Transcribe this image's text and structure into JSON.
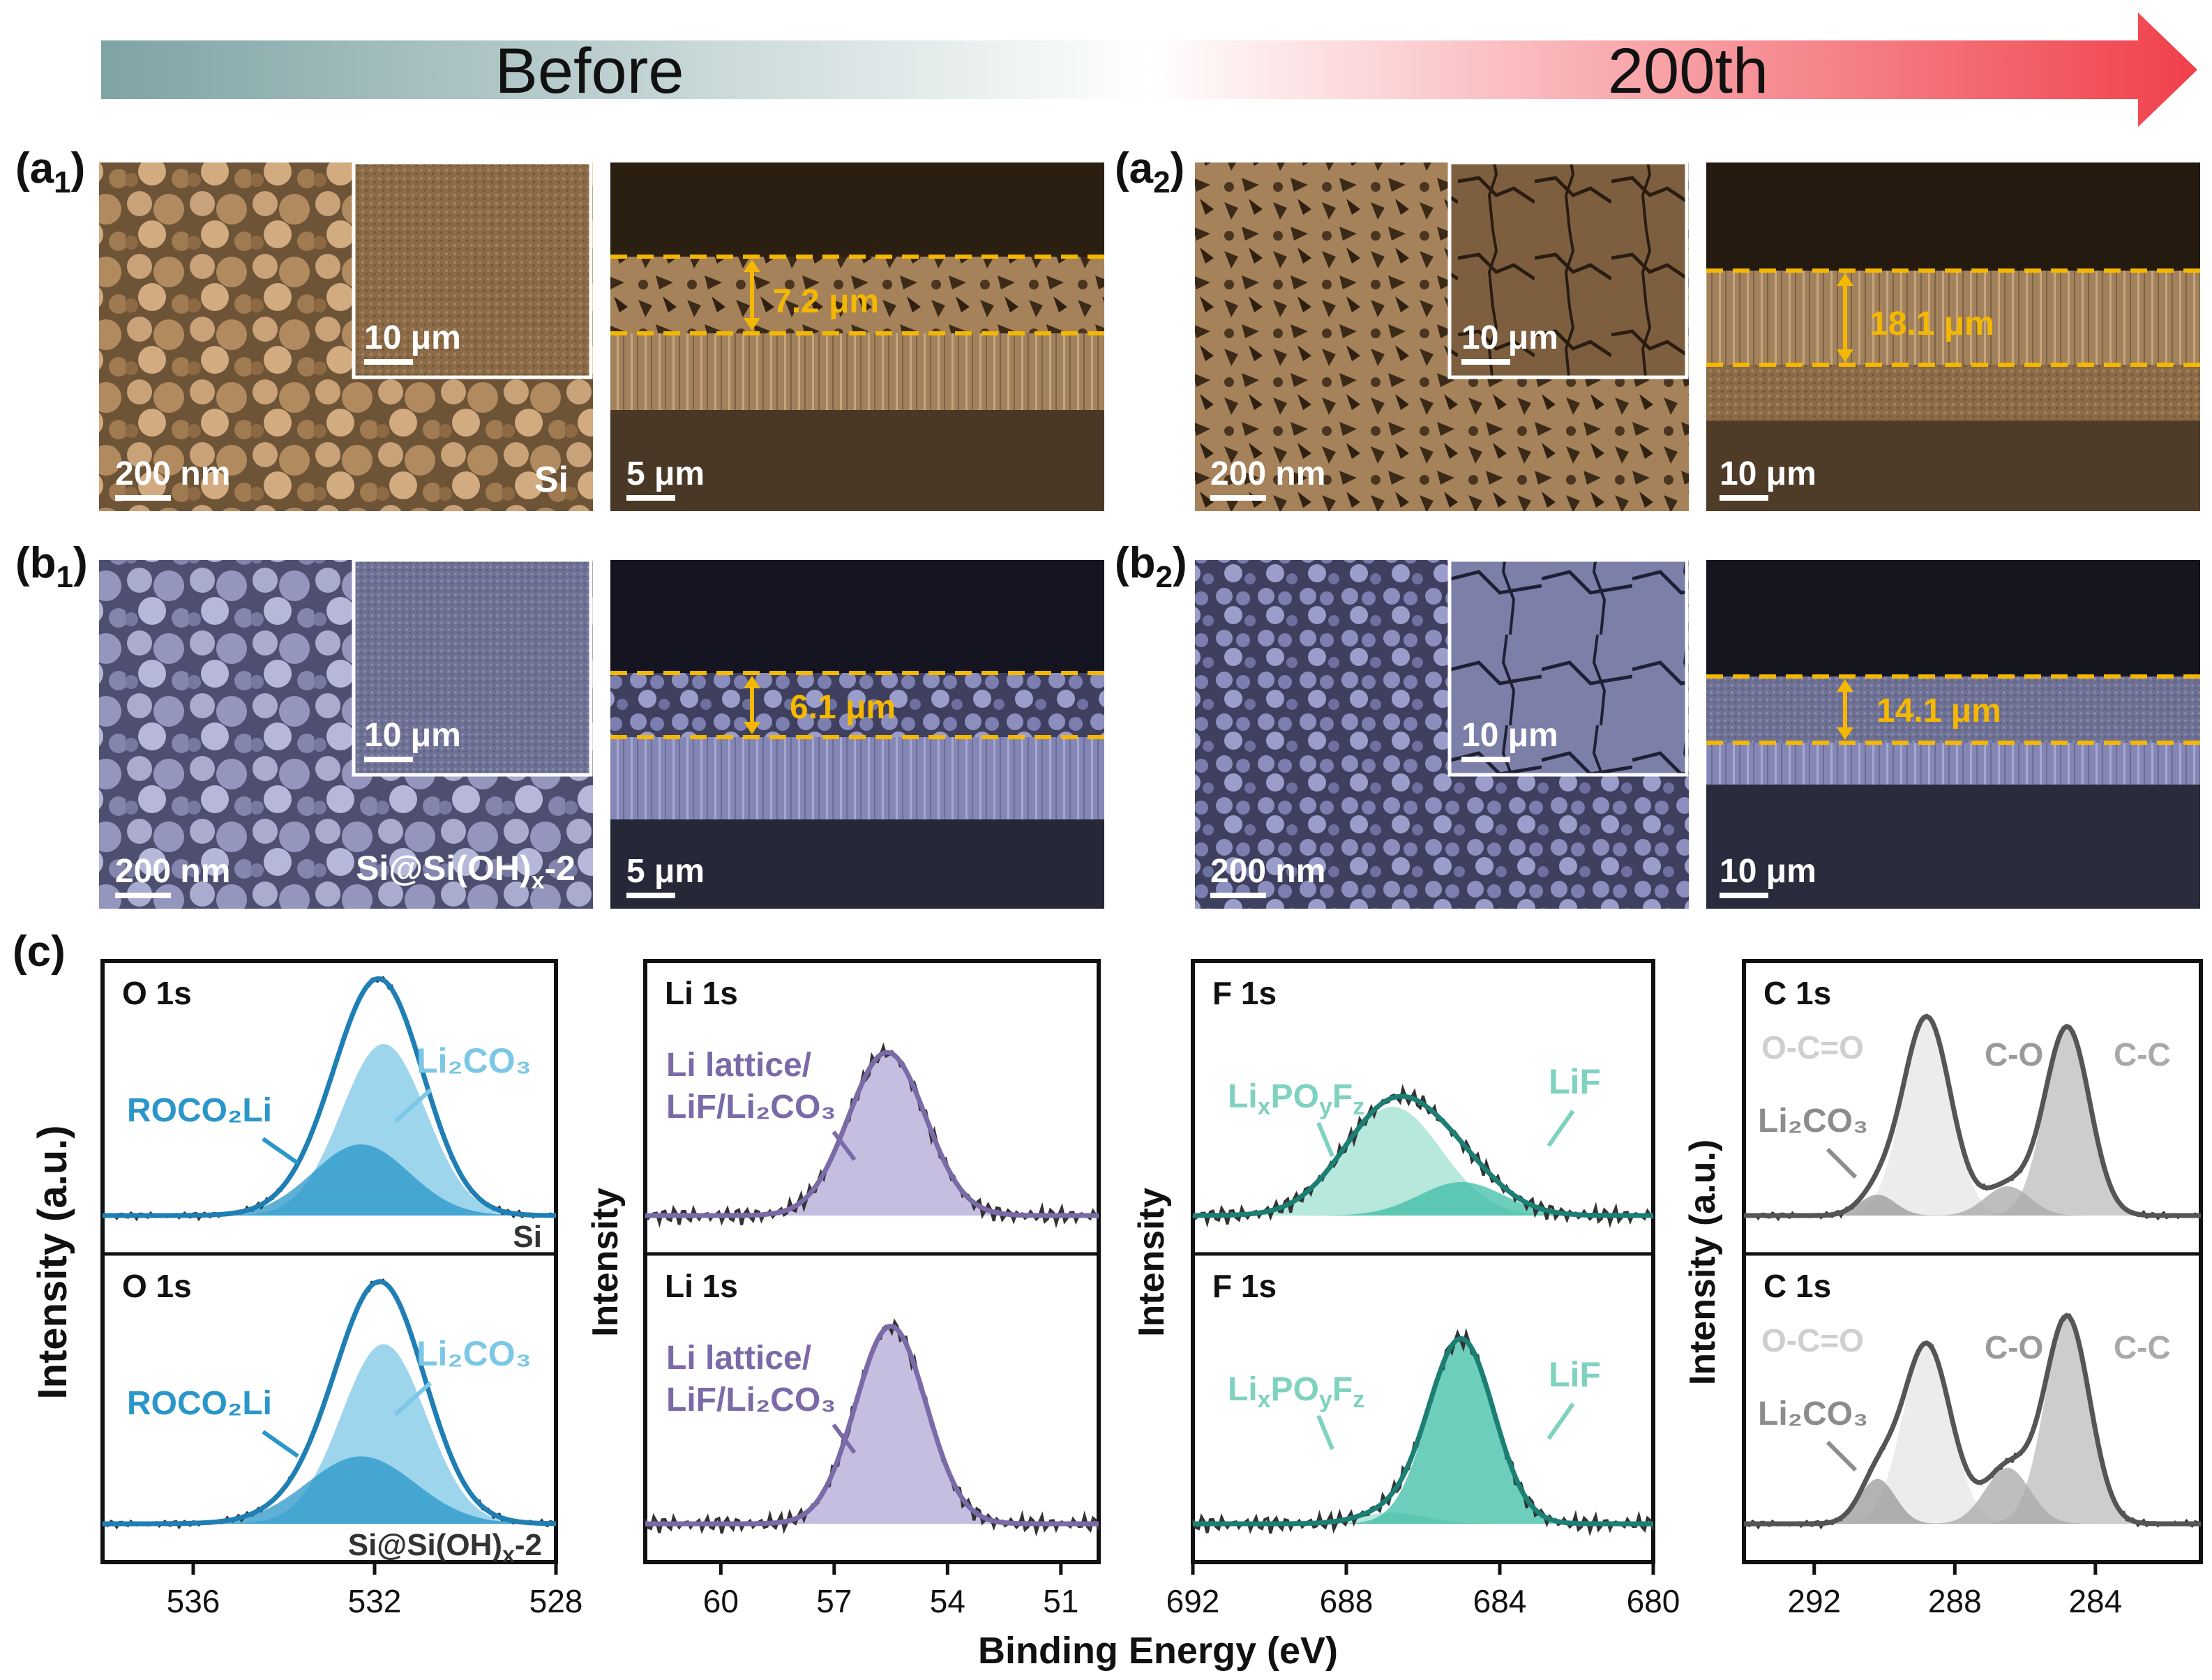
{
  "banner": {
    "before_label": "Before",
    "after_label": "200th",
    "gradient_start": "#7fa3a4",
    "gradient_end": "#f0404a"
  },
  "sem_rows": [
    {
      "row_id": "a",
      "sample_label": "Si",
      "tint": "#b48c63",
      "panels": [
        {
          "label_main": "(a",
          "label_sub": "1",
          "label_close": ")",
          "surface_scale": "200 nm",
          "inset_scale": "10 μm",
          "cross_scale": "5 μm",
          "thickness": "7.2 μm",
          "thickness_um": 7.2
        },
        {
          "label_main": "(a",
          "label_sub": "2",
          "label_close": ")",
          "surface_scale": "200 nm",
          "inset_scale": "10 μm",
          "cross_scale": "10 μm",
          "thickness": "18.1 μm",
          "thickness_um": 18.1
        }
      ]
    },
    {
      "row_id": "b",
      "sample_label": "Si@Si(OH)x-2",
      "tint": "#8c8fc4",
      "panels": [
        {
          "label_main": "(b",
          "label_sub": "1",
          "label_close": ")",
          "surface_scale": "200 nm",
          "inset_scale": "10 μm",
          "cross_scale": "5 μm",
          "thickness": "6.1 μm",
          "thickness_um": 6.1
        },
        {
          "label_main": "(b",
          "label_sub": "2",
          "label_close": ")",
          "surface_scale": "200 nm",
          "inset_scale": "10 μm",
          "cross_scale": "10 μm",
          "thickness": "14.1 μm",
          "thickness_um": 14.1
        }
      ]
    }
  ],
  "annotation_color": "#f5b800",
  "section_c_label": "(c)",
  "shared_xlabel": "Binding Energy (eV)",
  "chart_data": [
    {
      "type": "line",
      "title": "O 1s",
      "xlabel": "Binding Energy (eV)",
      "ylabel": "Intensity (a.u.)",
      "xlim": [
        538,
        528
      ],
      "xticks": [
        536,
        532,
        528
      ],
      "color": "#1f7fb5",
      "stack": [
        {
          "title": "O 1s",
          "sample": "Si",
          "peaks": [
            {
              "name": "Li2CO3",
              "label": "Li₂CO₃",
              "center": 531.8,
              "fwhm": 2.2,
              "height": 0.82,
              "color": "#7cc7e6"
            },
            {
              "name": "ROCO2Li",
              "label": "ROCO₂Li",
              "center": 532.3,
              "fwhm": 2.5,
              "height": 0.34,
              "color": "#2a96c9"
            }
          ]
        },
        {
          "title": "O 1s",
          "sample": "Si@Si(OH)x-2",
          "peaks": [
            {
              "name": "Li2CO3",
              "label": "Li₂CO₃",
              "center": 531.8,
              "fwhm": 2.2,
              "height": 0.8,
              "color": "#7cc7e6"
            },
            {
              "name": "ROCO2Li",
              "label": "ROCO₂Li",
              "center": 532.3,
              "fwhm": 2.8,
              "height": 0.3,
              "color": "#2a96c9"
            }
          ]
        }
      ]
    },
    {
      "type": "line",
      "title": "Li 1s",
      "ylabel": "Intensity",
      "xlim": [
        62,
        50
      ],
      "xticks": [
        60,
        57,
        54,
        51
      ],
      "color": "#7a6aa8",
      "stack": [
        {
          "title": "Li 1s",
          "peaks": [
            {
              "name": "Li lattice/LiF/Li2CO3",
              "label1": "Li lattice/",
              "label2": "LiF/Li₂CO₃",
              "center": 55.6,
              "fwhm": 2.4,
              "height": 0.78,
              "color": "#b3a8d6"
            }
          ]
        },
        {
          "title": "Li 1s",
          "peaks": [
            {
              "name": "Li lattice/LiF/Li2CO3",
              "label1": "Li lattice/",
              "label2": "LiF/Li₂CO₃",
              "center": 55.5,
              "fwhm": 2.2,
              "height": 0.88,
              "color": "#b3a8d6"
            }
          ]
        }
      ]
    },
    {
      "type": "line",
      "title": "F 1s",
      "ylabel": "Intensity",
      "xlim": [
        692,
        680
      ],
      "xticks": [
        692,
        688,
        684,
        680
      ],
      "color": "#1b7f74",
      "stack": [
        {
          "title": "F 1s",
          "peaks": [
            {
              "name": "LixPOyFz",
              "label": "LixPOyFz",
              "center": 686.8,
              "fwhm": 3.0,
              "height": 0.52,
              "color": "#9ee0cf"
            },
            {
              "name": "LiF",
              "label": "LiF",
              "center": 685.0,
              "fwhm": 2.6,
              "height": 0.16,
              "color": "#3dbda6"
            }
          ]
        },
        {
          "title": "F 1s",
          "peaks": [
            {
              "name": "LixPOyFz",
              "label": "LixPOyFz",
              "center": 686.8,
              "fwhm": 2.0,
              "height": 0.05,
              "color": "#9ee0cf"
            },
            {
              "name": "LiF",
              "label": "LiF",
              "center": 685.0,
              "fwhm": 2.0,
              "height": 0.82,
              "color": "#3dbda6"
            }
          ]
        }
      ]
    },
    {
      "type": "line",
      "title": "C 1s",
      "ylabel": "Intensity (a.u.)",
      "xlim": [
        294,
        281
      ],
      "xticks": [
        292,
        288,
        284
      ],
      "color": "#555555",
      "stack": [
        {
          "title": "C 1s",
          "peaks": [
            {
              "name": "O-C=O",
              "label": "O-C=O",
              "center": 288.8,
              "fwhm": 1.6,
              "height": 0.95,
              "color": "#e6e6e6"
            },
            {
              "name": "C-C",
              "label": "C-C",
              "center": 284.8,
              "fwhm": 1.5,
              "height": 0.9,
              "color": "#bcbcbc"
            },
            {
              "name": "C-O",
              "label": "C-O",
              "center": 286.5,
              "fwhm": 1.5,
              "height": 0.14,
              "color": "#a8a8a8"
            },
            {
              "name": "Li2CO3",
              "label": "Li₂CO₃",
              "center": 290.2,
              "fwhm": 1.2,
              "height": 0.1,
              "color": "#9a9a9a"
            }
          ]
        },
        {
          "title": "C 1s",
          "peaks": [
            {
              "name": "O-C=O",
              "label": "O-C=O",
              "center": 288.8,
              "fwhm": 1.6,
              "height": 0.8,
              "color": "#e6e6e6"
            },
            {
              "name": "C-C",
              "label": "C-C",
              "center": 284.8,
              "fwhm": 1.5,
              "height": 0.92,
              "color": "#bcbcbc"
            },
            {
              "name": "C-O",
              "label": "C-O",
              "center": 286.5,
              "fwhm": 1.5,
              "height": 0.25,
              "color": "#a8a8a8"
            },
            {
              "name": "Li2CO3",
              "label": "Li₂CO₃",
              "center": 290.2,
              "fwhm": 1.2,
              "height": 0.2,
              "color": "#9a9a9a"
            }
          ]
        }
      ]
    }
  ]
}
